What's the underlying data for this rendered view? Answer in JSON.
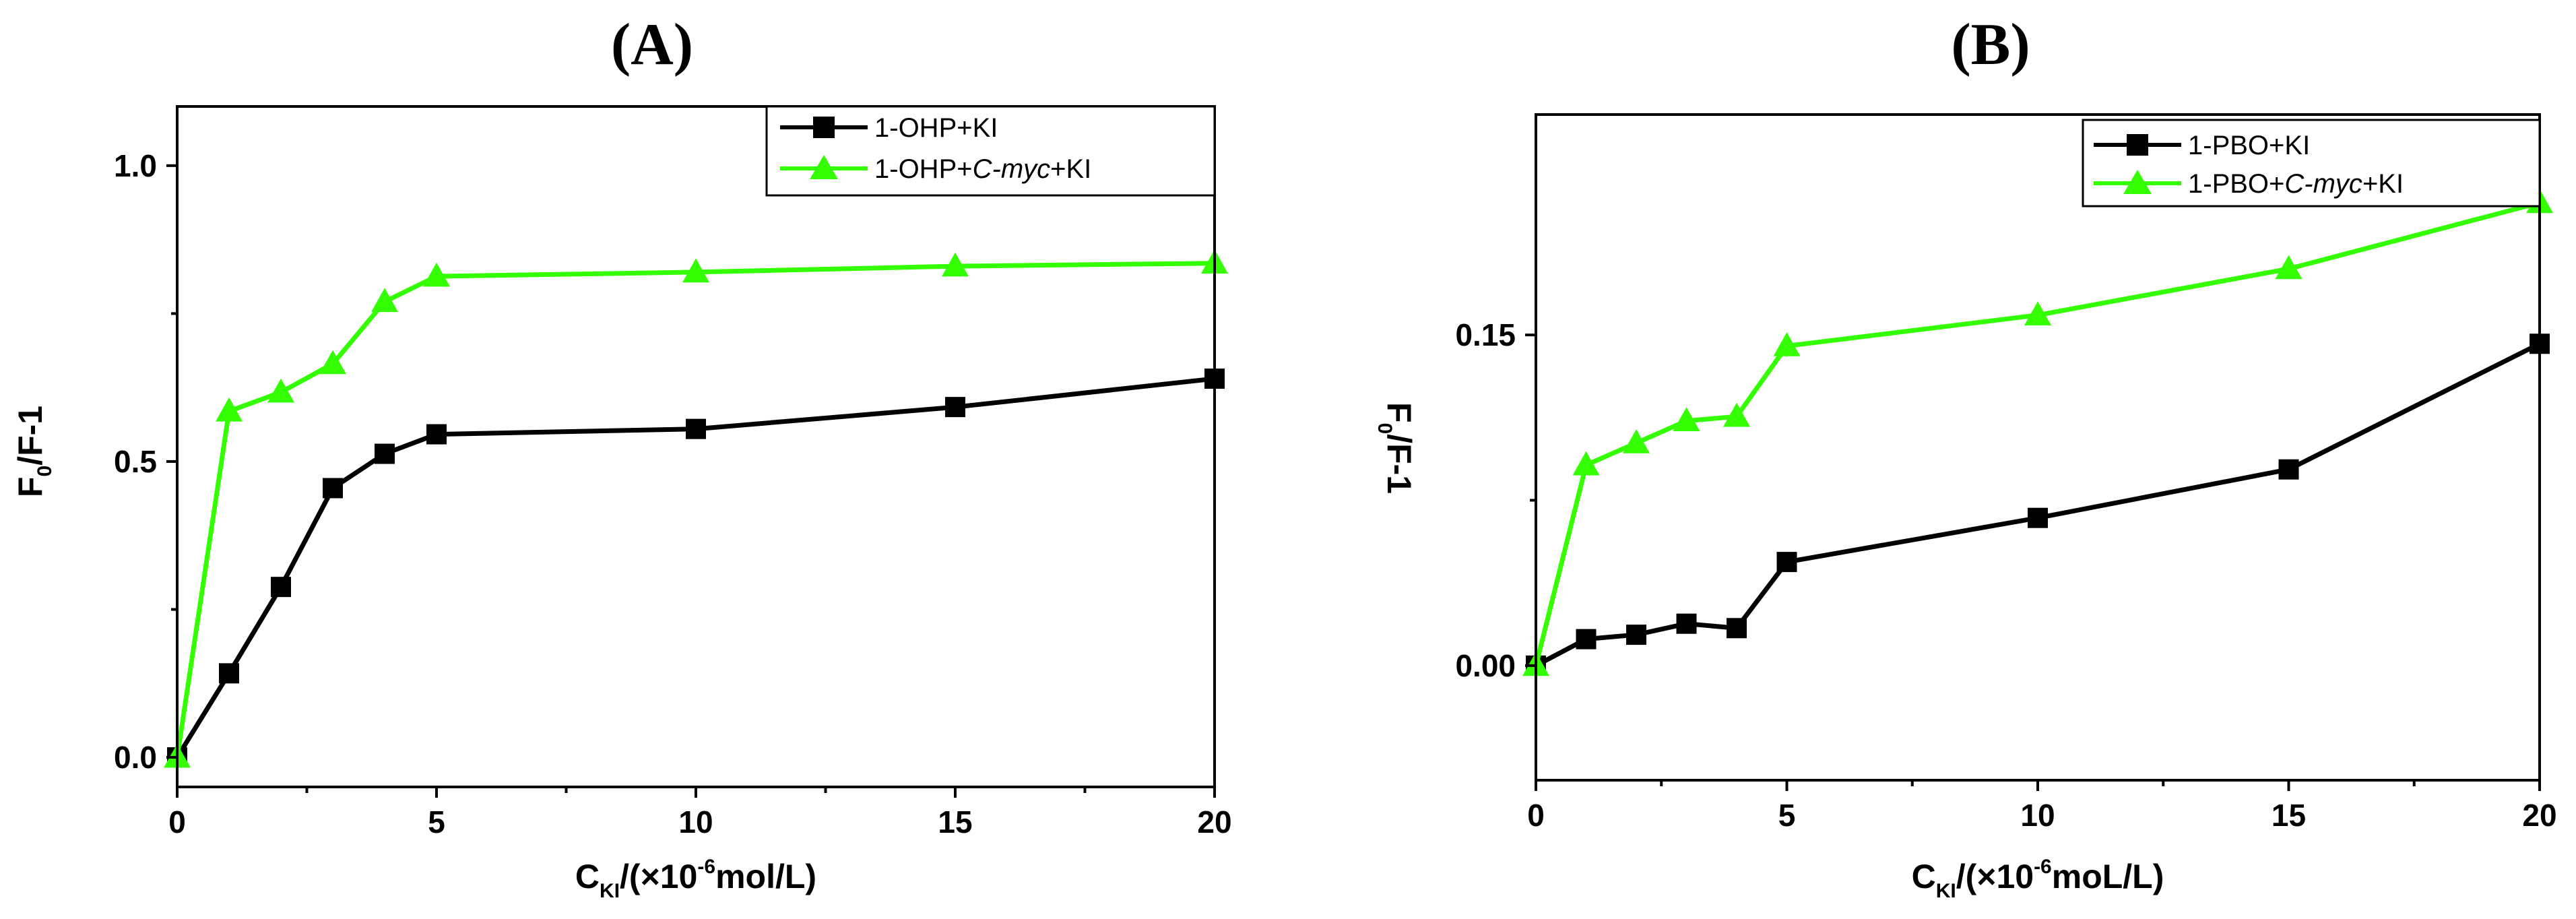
{
  "colors": {
    "series_black": "#000000",
    "series_green": "#33ff00",
    "axes": "#000000"
  },
  "chart_data": [
    {
      "type": "line",
      "panel": "(A)",
      "title": "(A)",
      "xlabel": {
        "main": "C",
        "sub": "KI",
        "rest": "/(×10",
        "sup": "-6",
        "tail": "mol/L)"
      },
      "ylabel": {
        "main": "F",
        "sub": "0",
        "tail": "/F-1"
      },
      "xlim": [
        0,
        20
      ],
      "ylim": [
        -0.05,
        1.1
      ],
      "xticks": [
        0,
        5,
        10,
        15,
        20
      ],
      "xtick_labels": [
        "0",
        "5",
        "10",
        "15",
        "20"
      ],
      "yticks": [
        0.0,
        0.5,
        1.0
      ],
      "ytick_labels": [
        "0.0",
        "0.5",
        "1.0"
      ],
      "grid": false,
      "legend_position": "top-right",
      "series": [
        {
          "name": "1-OHP+KI",
          "legend": {
            "before": "1-OHP+KI",
            "italic": "",
            "after": ""
          },
          "marker": "square",
          "color": "#000000",
          "x": [
            0,
            1,
            2,
            3,
            4,
            5,
            10,
            15,
            20
          ],
          "y": [
            0.0,
            0.142,
            0.288,
            0.455,
            0.513,
            0.546,
            0.555,
            0.592,
            0.64
          ]
        },
        {
          "name": "1-OHP+C-myc+KI",
          "legend": {
            "before": "1-OHP+",
            "italic": "C-myc",
            "after": "+KI"
          },
          "marker": "triangle",
          "color": "#33ff00",
          "x": [
            0,
            1,
            2,
            3,
            4,
            5,
            10,
            15,
            20
          ],
          "y": [
            0.0,
            0.585,
            0.617,
            0.665,
            0.77,
            0.813,
            0.82,
            0.83,
            0.835
          ]
        }
      ]
    },
    {
      "type": "line",
      "panel": "(B)",
      "title": "(B)",
      "xlabel": {
        "main": "C",
        "sub": "KI",
        "rest": "/(×10",
        "sup": "-6",
        "tail": "moL/L)"
      },
      "ylabel": {
        "main": "F",
        "sub": "0",
        "tail": "/F-1"
      },
      "xlim": [
        0,
        20
      ],
      "ylim": [
        -0.052,
        0.25
      ],
      "xticks": [
        0,
        5,
        10,
        15,
        20
      ],
      "xtick_labels": [
        "0",
        "5",
        "10",
        "15",
        "20"
      ],
      "yticks": [
        0.0,
        0.15
      ],
      "ytick_labels": [
        "0.00",
        "0.15"
      ],
      "grid": false,
      "legend_position": "top-right",
      "series": [
        {
          "name": "1-PBO+KI",
          "legend": {
            "before": "1-PBO+KI",
            "italic": "",
            "after": ""
          },
          "marker": "square",
          "color": "#000000",
          "x": [
            0,
            1,
            2,
            3,
            4,
            5,
            10,
            15,
            20
          ],
          "y": [
            0.0,
            0.012,
            0.014,
            0.019,
            0.017,
            0.047,
            0.067,
            0.089,
            0.146
          ]
        },
        {
          "name": "1-PBO+C-myc+KI",
          "legend": {
            "before": "1-PBO+",
            "italic": "C-myc",
            "after": "+KI"
          },
          "marker": "triangle",
          "color": "#33ff00",
          "x": [
            0,
            1,
            2,
            3,
            4,
            5,
            10,
            15,
            20
          ],
          "y": [
            0.0,
            0.091,
            0.101,
            0.111,
            0.113,
            0.145,
            0.159,
            0.18,
            0.21
          ]
        }
      ]
    }
  ]
}
